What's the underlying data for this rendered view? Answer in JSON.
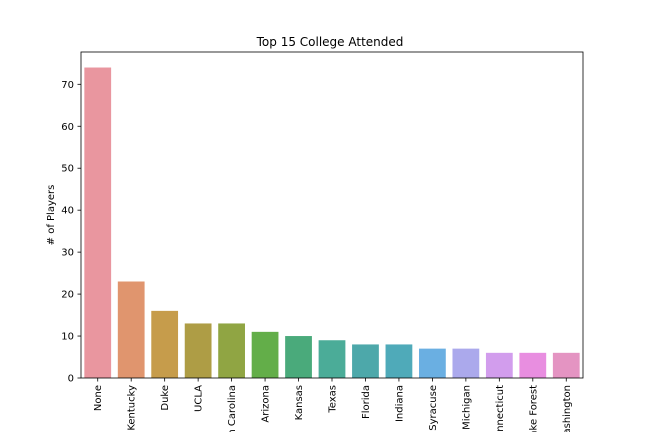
{
  "chart_data": {
    "type": "bar",
    "title": "Top 15 College Attended",
    "xlabel": "",
    "ylabel": "# of Players",
    "categories": [
      "None",
      "Kentucky",
      "Duke",
      "UCLA",
      "North Carolina",
      "Arizona",
      "Kansas",
      "Texas",
      "Florida",
      "Indiana",
      "Syracuse",
      "Michigan",
      "Connecticut",
      "Wake Forest",
      "Washington"
    ],
    "values": [
      74,
      23,
      16,
      13,
      13,
      11,
      10,
      9,
      8,
      8,
      7,
      7,
      6,
      6,
      6
    ],
    "ylim": [
      0,
      77.7
    ],
    "yticks": [
      0,
      10,
      20,
      30,
      40,
      50,
      60,
      70
    ],
    "grid": false,
    "colors": [
      "#e9969f",
      "#e0956e",
      "#c69c4b",
      "#ae9d45",
      "#90a543",
      "#63ae49",
      "#4aaa7b",
      "#4bac98",
      "#4da8aa",
      "#4faab9",
      "#6aafe2",
      "#aba9ec",
      "#d29ded",
      "#e88ee0",
      "#e494c2"
    ]
  }
}
